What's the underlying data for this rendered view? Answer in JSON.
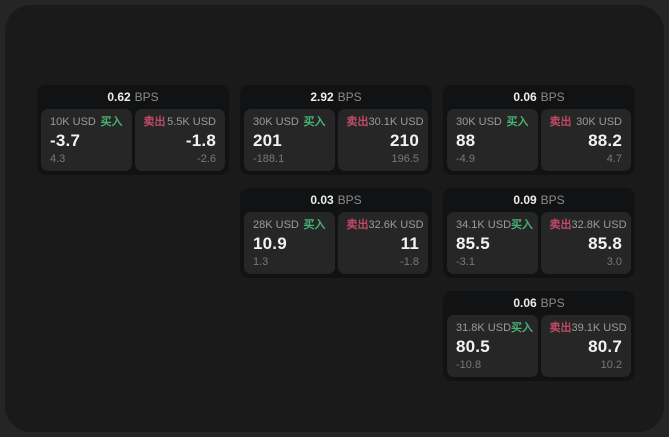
{
  "labels": {
    "bps_unit": "BPS",
    "buy": "买入",
    "sell": "卖出"
  },
  "colors": {
    "buy_green": "#45b374",
    "sell_red": "#bf4a66",
    "card_bg": "#111213",
    "tile_bg": "#262627",
    "page_bg": "#1a1a1a"
  },
  "cards": [
    {
      "bps": "0.62",
      "buy": {
        "amount": "10K USD",
        "value": "-3.7",
        "delta": "4.3"
      },
      "sell": {
        "amount": "5.5K USD",
        "value": "-1.8",
        "delta": "-2.6"
      }
    },
    {
      "bps": "2.92",
      "buy": {
        "amount": "30K USD",
        "value": "201",
        "delta": "-188.1"
      },
      "sell": {
        "amount": "30.1K USD",
        "value": "210",
        "delta": "196.5"
      }
    },
    {
      "bps": "0.06",
      "buy": {
        "amount": "30K USD",
        "value": "88",
        "delta": "-4.9"
      },
      "sell": {
        "amount": "30K USD",
        "value": "88.2",
        "delta": "4.7"
      }
    },
    {
      "bps": "0.03",
      "buy": {
        "amount": "28K USD",
        "value": "10.9",
        "delta": "1.3"
      },
      "sell": {
        "amount": "32.6K USD",
        "value": "11",
        "delta": "-1.8"
      }
    },
    {
      "bps": "0.09",
      "buy": {
        "amount": "34.1K USD",
        "value": "85.5",
        "delta": "-3.1"
      },
      "sell": {
        "amount": "32.8K USD",
        "value": "85.8",
        "delta": "3.0"
      }
    },
    {
      "bps": "0.06",
      "buy": {
        "amount": "31.8K USD",
        "value": "80.5",
        "delta": "-10.8"
      },
      "sell": {
        "amount": "39.1K USD",
        "value": "80.7",
        "delta": "10.2"
      }
    }
  ]
}
